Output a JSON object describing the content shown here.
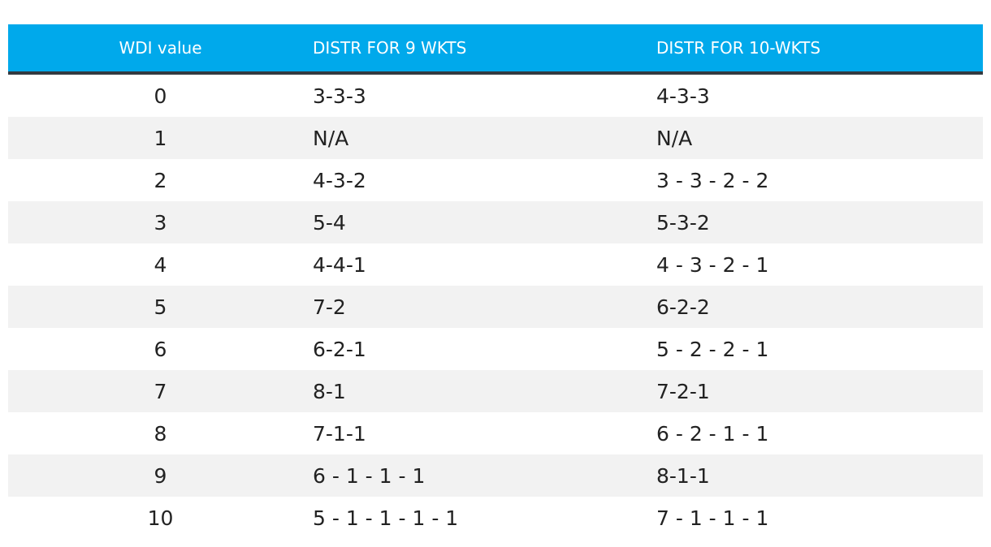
{
  "table": {
    "headers": [
      "WDI value",
      "DISTR FOR 9 WKTS",
      "DISTR FOR 10-WKTS"
    ],
    "rows": [
      [
        "0",
        "3-3-3",
        "4-3-3"
      ],
      [
        "1",
        "N/A",
        "N/A"
      ],
      [
        "2",
        "4-3-2",
        "3 - 3 - 2 - 2"
      ],
      [
        "3",
        "5-4",
        "5-3-2"
      ],
      [
        "4",
        "4-4-1",
        "4 - 3 - 2 - 1"
      ],
      [
        "5",
        "7-2",
        "6-2-2"
      ],
      [
        "6",
        "6-2-1",
        "5 - 2 - 2 - 1"
      ],
      [
        "7",
        "8-1",
        "7-2-1"
      ],
      [
        "8",
        "7-1-1",
        "6 - 2 - 1 - 1"
      ],
      [
        "9",
        "6 - 1 - 1 - 1",
        "8-1-1"
      ],
      [
        "10",
        "5 - 1 - 1 - 1 - 1",
        "7 - 1 - 1 - 1"
      ]
    ]
  },
  "colors": {
    "header_bg": "#00a9eb",
    "header_border": "#333a40",
    "alt_row_bg": "#f2f2f2"
  }
}
